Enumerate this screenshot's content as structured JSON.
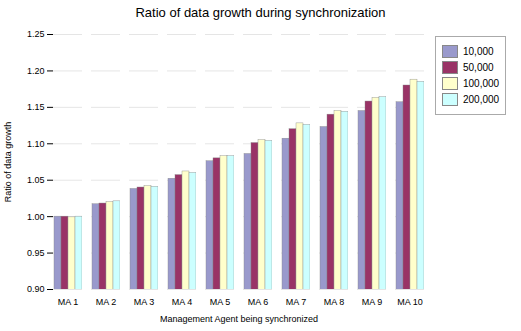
{
  "chart_data": {
    "type": "bar",
    "title": "Ratio of data growth during synchronization",
    "xlabel": "Management Agent being synchronized",
    "ylabel": "Ratio of data growth",
    "categories": [
      "MA 1",
      "MA 2",
      "MA 3",
      "MA 4",
      "MA 5",
      "MA 6",
      "MA 7",
      "MA 8",
      "MA 9",
      "MA 10"
    ],
    "series": [
      {
        "name": "10,000",
        "color": "#9999cc",
        "values": [
          1.0,
          1.017,
          1.038,
          1.052,
          1.076,
          1.086,
          1.107,
          1.123,
          1.145,
          1.157
        ]
      },
      {
        "name": "50,000",
        "color": "#993366",
        "values": [
          1.0,
          1.018,
          1.04,
          1.057,
          1.08,
          1.101,
          1.12,
          1.14,
          1.158,
          1.18
        ]
      },
      {
        "name": "100,000",
        "color": "#ffffcc",
        "values": [
          0.999,
          1.02,
          1.042,
          1.062,
          1.083,
          1.105,
          1.128,
          1.145,
          1.163,
          1.188
        ]
      },
      {
        "name": "200,000",
        "color": "#ccffff",
        "values": [
          1.0,
          1.021,
          1.041,
          1.06,
          1.083,
          1.104,
          1.126,
          1.144,
          1.164,
          1.185
        ]
      }
    ],
    "ylim": [
      0.9,
      1.25
    ],
    "yticks": [
      {
        "value": 0.9,
        "label": "0.90"
      },
      {
        "value": 0.95,
        "label": "0.95"
      },
      {
        "value": 1.0,
        "label": "1.00"
      },
      {
        "value": 1.05,
        "label": "1.05"
      },
      {
        "value": 1.1,
        "label": "1.10"
      },
      {
        "value": 1.15,
        "label": "1.15"
      },
      {
        "value": 1.2,
        "label": "1.20"
      },
      {
        "value": 1.25,
        "label": "1.25"
      }
    ],
    "grid": true,
    "legend": "right"
  }
}
